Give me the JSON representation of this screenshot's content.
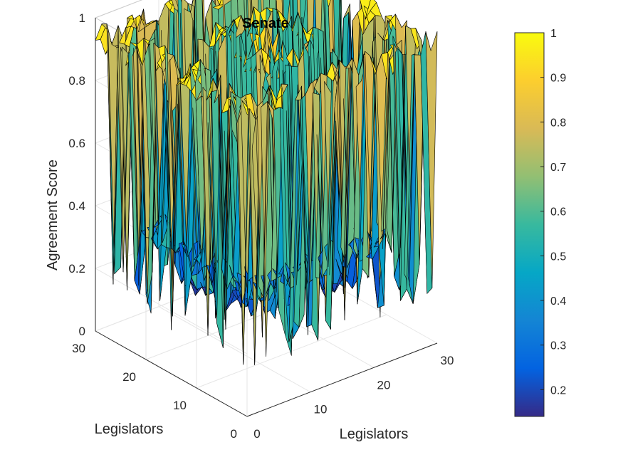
{
  "chart_data": {
    "type": "surface",
    "title": "Senate",
    "xlabel": "Legislators",
    "ylabel": "Legislators",
    "zlabel": "Agreement Score",
    "xlim": [
      0,
      30
    ],
    "ylim": [
      0,
      30
    ],
    "zlim": [
      0,
      1
    ],
    "x_ticks": [
      "0",
      "10",
      "20",
      "30"
    ],
    "y_ticks": [
      "0",
      "10",
      "20",
      "30"
    ],
    "z_ticks": [
      "0",
      "0.2",
      "0.4",
      "0.6",
      "0.8",
      "1"
    ],
    "grid": true,
    "colormap": "parula",
    "colorbar": {
      "range": [
        0.14,
        1
      ],
      "ticks": [
        "0.2",
        "0.3",
        "0.4",
        "0.5",
        "0.6",
        "0.7",
        "0.8",
        "0.9",
        "1"
      ],
      "placement": "right"
    },
    "grid_size": 30,
    "layers": [
      {
        "ring_min": 0,
        "ring_max": 2,
        "value": 0.9
      },
      {
        "ring_min": 3,
        "ring_max": 3,
        "value": 0.18
      },
      {
        "ring_min": 4,
        "ring_max": 5,
        "value": 0.95
      },
      {
        "ring_min": 6,
        "ring_max": 8,
        "value": 0.2
      },
      {
        "ring_min": 9,
        "ring_max": 11,
        "value": 0.32
      },
      {
        "ring_min": 12,
        "ring_max": 15,
        "value": 0.95
      }
    ],
    "peak_value": 1,
    "noise_amplitude": 0.05,
    "spike_fraction": 0.12
  }
}
